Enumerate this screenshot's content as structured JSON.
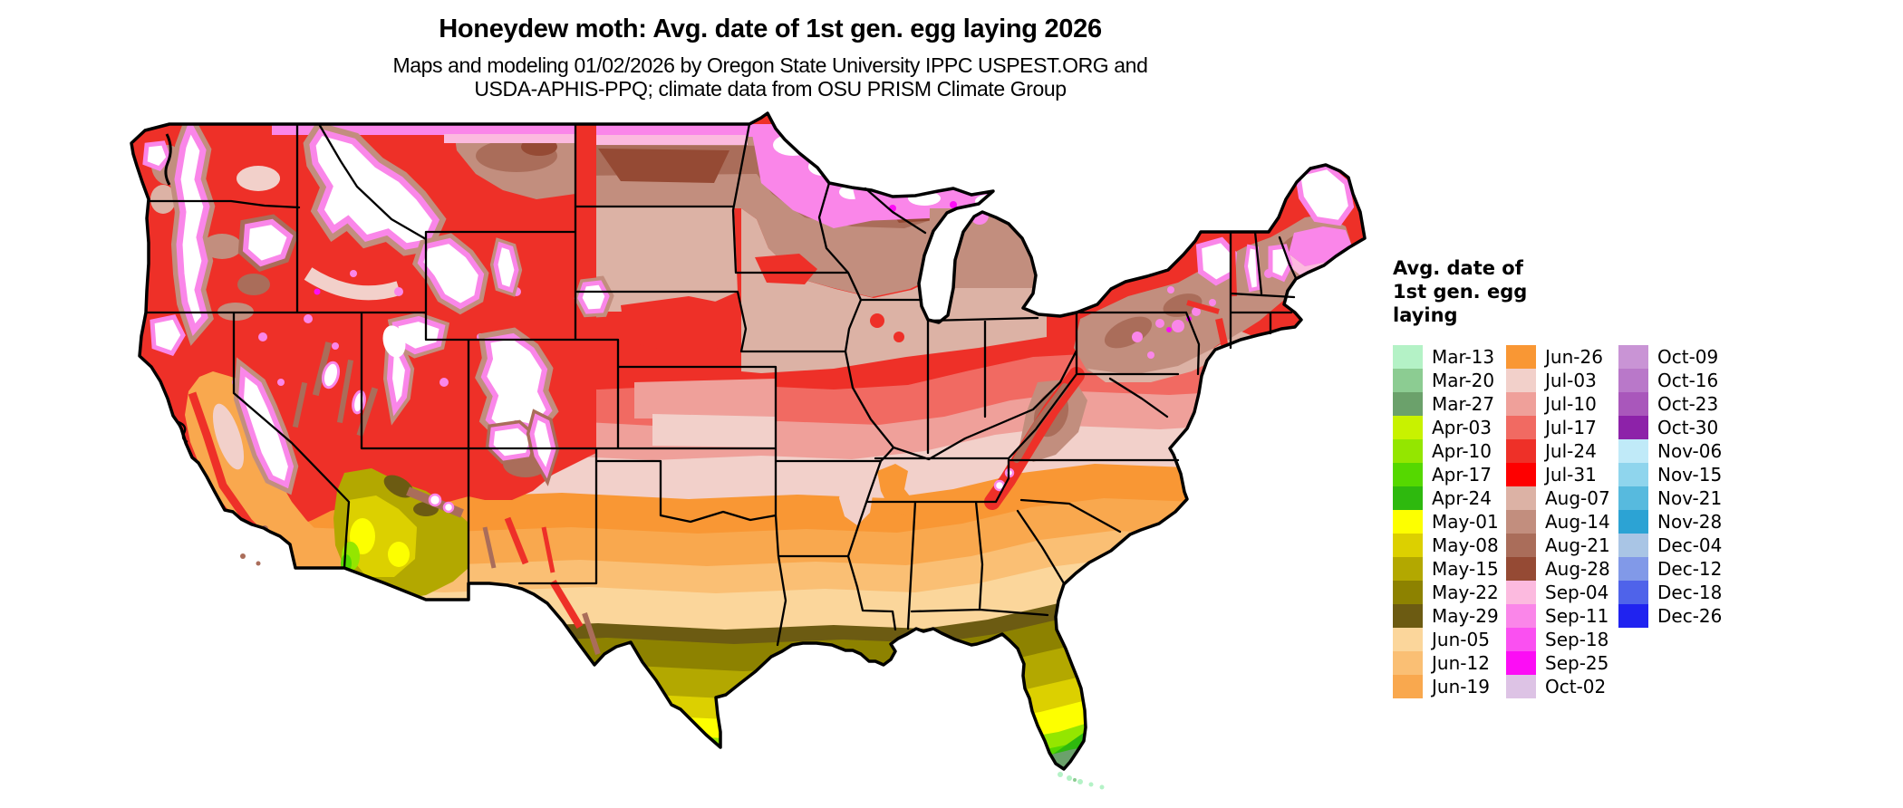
{
  "header": {
    "title": "Honeydew moth: Avg. date of 1st gen. egg laying 2026",
    "subtitle_line1": "Maps and modeling 01/02/2026 by Oregon State University IPPC USPEST.ORG and",
    "subtitle_line2": "USDA-APHIS-PPQ; climate data from OSU PRISM Climate Group"
  },
  "map": {
    "region": "Conterminous United States",
    "kind": "raster model-output map with state borders"
  },
  "legend": {
    "title_lines": [
      "Avg. date of",
      "1st gen. egg",
      "laying"
    ],
    "columns": [
      [
        {
          "label": "Mar-13",
          "color": "#b4f2c6"
        },
        {
          "label": "Mar-20",
          "color": "#8ccc92"
        },
        {
          "label": "Mar-27",
          "color": "#6ba16b"
        },
        {
          "label": "Apr-03",
          "color": "#c8f200"
        },
        {
          "label": "Apr-10",
          "color": "#94e600"
        },
        {
          "label": "Apr-17",
          "color": "#55d800"
        },
        {
          "label": "Apr-24",
          "color": "#2eb90e"
        },
        {
          "label": "May-01",
          "color": "#fdff00"
        },
        {
          "label": "May-08",
          "color": "#dcd000"
        },
        {
          "label": "May-15",
          "color": "#b3a800"
        },
        {
          "label": "May-22",
          "color": "#8d8200"
        },
        {
          "label": "May-29",
          "color": "#6c5b12"
        },
        {
          "label": "Jun-05",
          "color": "#fbd69b"
        },
        {
          "label": "Jun-12",
          "color": "#fabf74"
        },
        {
          "label": "Jun-19",
          "color": "#f9a84e"
        }
      ],
      [
        {
          "label": "Jun-26",
          "color": "#f99734"
        },
        {
          "label": "Jul-03",
          "color": "#f2d0ca"
        },
        {
          "label": "Jul-10",
          "color": "#efa09a"
        },
        {
          "label": "Jul-17",
          "color": "#f16a62"
        },
        {
          "label": "Jul-24",
          "color": "#ee3028"
        },
        {
          "label": "Jul-31",
          "color": "#fe0000"
        },
        {
          "label": "Aug-07",
          "color": "#dcb2a5"
        },
        {
          "label": "Aug-14",
          "color": "#c28e7e"
        },
        {
          "label": "Aug-21",
          "color": "#aa6d5a"
        },
        {
          "label": "Aug-28",
          "color": "#954a34"
        },
        {
          "label": "Sep-04",
          "color": "#fcbadf"
        },
        {
          "label": "Sep-11",
          "color": "#fa86e9"
        },
        {
          "label": "Sep-18",
          "color": "#fa50f1"
        },
        {
          "label": "Sep-25",
          "color": "#fc0df5"
        },
        {
          "label": "Oct-02",
          "color": "#ddc3e5"
        }
      ],
      [
        {
          "label": "Oct-09",
          "color": "#c994d5"
        },
        {
          "label": "Oct-16",
          "color": "#b978c9"
        },
        {
          "label": "Oct-23",
          "color": "#a957bb"
        },
        {
          "label": "Oct-30",
          "color": "#8d22a9"
        },
        {
          "label": "Nov-06",
          "color": "#c0eaf8"
        },
        {
          "label": "Nov-15",
          "color": "#8fd5ed"
        },
        {
          "label": "Nov-21",
          "color": "#57bade"
        },
        {
          "label": "Nov-28",
          "color": "#2ca3d4"
        },
        {
          "label": "Dec-04",
          "color": "#a9c5e5"
        },
        {
          "label": "Dec-12",
          "color": "#8199e8"
        },
        {
          "label": "Dec-18",
          "color": "#4f63ea"
        },
        {
          "label": "Dec-26",
          "color": "#2023f0"
        }
      ]
    ]
  }
}
